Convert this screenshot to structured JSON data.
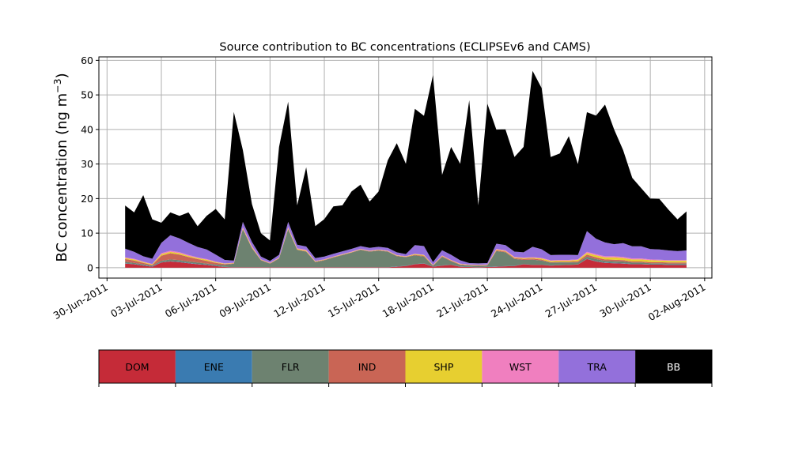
{
  "chart_data": {
    "type": "area",
    "stacked": true,
    "title": "Source contribution to BC concentrations (ECLIPSEv6 and CAMS)",
    "xlabel": "",
    "ylabel": "BC concentration (ng m",
    "ylabel_superscript": "−3",
    "ylabel_close": ")",
    "ylim": [
      -3,
      61
    ],
    "yticks": [
      0,
      10,
      20,
      30,
      40,
      50,
      60
    ],
    "xlim_days_since_30jun2011": [
      -0.45,
      33.4
    ],
    "xticks": [
      {
        "day": 0,
        "label": "30-Jun-2011"
      },
      {
        "day": 3,
        "label": "03-Jul-2011"
      },
      {
        "day": 6,
        "label": "06-Jul-2011"
      },
      {
        "day": 9,
        "label": "09-Jul-2011"
      },
      {
        "day": 12,
        "label": "12-Jul-2011"
      },
      {
        "day": 15,
        "label": "15-Jul-2011"
      },
      {
        "day": 18,
        "label": "18-Jul-2011"
      },
      {
        "day": 21,
        "label": "21-Jul-2011"
      },
      {
        "day": 24,
        "label": "24-Jul-2011"
      },
      {
        "day": 27,
        "label": "27-Jul-2011"
      },
      {
        "day": 30,
        "label": "30-Jul-2011"
      },
      {
        "day": 33,
        "label": "02-Aug-2011"
      }
    ],
    "grid": true,
    "legend": "colorbar-bottom",
    "x": [
      1.0,
      1.5,
      2.0,
      2.5,
      3.0,
      3.5,
      4.0,
      4.5,
      5.0,
      5.5,
      6.0,
      6.5,
      7.0,
      7.5,
      8.0,
      8.5,
      9.0,
      9.5,
      10.0,
      10.5,
      11.0,
      11.5,
      12.0,
      12.5,
      13.0,
      13.5,
      14.0,
      14.5,
      15.0,
      15.5,
      16.0,
      16.5,
      17.0,
      17.5,
      18.0,
      18.5,
      19.0,
      19.5,
      20.0,
      20.5,
      21.0,
      21.5,
      22.0,
      22.5,
      23.0,
      23.5,
      24.0,
      24.5,
      25.0,
      25.5,
      26.0,
      26.5,
      27.0,
      27.5,
      28.0,
      28.5,
      29.0,
      29.5,
      30.0,
      30.5,
      31.0,
      31.5,
      32.0
    ],
    "series": [
      {
        "name": "DOM",
        "color": "#c52b38",
        "values": [
          1.2,
          1.0,
          0.6,
          0.3,
          1.5,
          1.8,
          1.6,
          1.3,
          1.0,
          0.8,
          0.5,
          0.2,
          0.1,
          0.1,
          0.1,
          0.1,
          0.1,
          0.1,
          0.1,
          0.1,
          0.1,
          0.1,
          0.1,
          0.1,
          0.1,
          0.1,
          0.1,
          0.1,
          0.1,
          0.1,
          0.3,
          0.5,
          1.0,
          1.2,
          0.3,
          0.6,
          0.8,
          0.3,
          0.2,
          0.1,
          0.2,
          0.3,
          0.4,
          0.5,
          1.0,
          0.8,
          0.8,
          0.6,
          0.7,
          0.8,
          0.9,
          2.5,
          1.8,
          1.4,
          1.3,
          1.2,
          1.0,
          1.0,
          0.9,
          0.9,
          0.8,
          0.8,
          0.8
        ]
      },
      {
        "name": "ENE",
        "color": "#3a7bb1",
        "values": [
          0.1,
          0.1,
          0.1,
          0.1,
          0.1,
          0.1,
          0.1,
          0.1,
          0.1,
          0.1,
          0.1,
          0.05,
          0.05,
          0.05,
          0.05,
          0.05,
          0.05,
          0.05,
          0.05,
          0.05,
          0.05,
          0.05,
          0.05,
          0.05,
          0.05,
          0.05,
          0.05,
          0.05,
          0.05,
          0.05,
          0.05,
          0.05,
          0.05,
          0.05,
          0.05,
          0.05,
          0.05,
          0.05,
          0.05,
          0.05,
          0.05,
          0.05,
          0.05,
          0.05,
          0.05,
          0.05,
          0.05,
          0.05,
          0.05,
          0.05,
          0.05,
          0.1,
          0.1,
          0.1,
          0.1,
          0.1,
          0.1,
          0.1,
          0.1,
          0.1,
          0.1,
          0.1,
          0.1
        ]
      },
      {
        "name": "FLR",
        "color": "#6d8270",
        "values": [
          0.4,
          0.3,
          0.3,
          0.2,
          0.4,
          0.5,
          0.5,
          0.4,
          0.4,
          0.3,
          0.3,
          0.6,
          1.0,
          11.0,
          5.5,
          2.0,
          1.0,
          2.5,
          11.0,
          5.0,
          4.5,
          1.5,
          2.0,
          2.8,
          3.5,
          4.2,
          5.0,
          4.5,
          4.8,
          4.5,
          3.0,
          2.5,
          2.5,
          2.0,
          0.2,
          2.5,
          1.0,
          0.5,
          0.4,
          0.4,
          0.4,
          4.5,
          4.0,
          2.0,
          1.2,
          1.5,
          1.2,
          0.8,
          0.8,
          0.7,
          0.6,
          0.6,
          0.6,
          0.5,
          0.5,
          0.5,
          0.4,
          0.4,
          0.3,
          0.3,
          0.3,
          0.3,
          0.3
        ]
      },
      {
        "name": "IND",
        "color": "#c96555",
        "values": [
          0.8,
          0.7,
          0.4,
          0.2,
          1.5,
          1.8,
          1.6,
          1.3,
          1.0,
          0.8,
          0.5,
          0.2,
          0.1,
          0.1,
          0.1,
          0.1,
          0.1,
          0.1,
          0.1,
          0.1,
          0.1,
          0.1,
          0.1,
          0.1,
          0.1,
          0.1,
          0.1,
          0.1,
          0.1,
          0.1,
          0.1,
          0.1,
          0.2,
          0.2,
          0.1,
          0.2,
          0.2,
          0.1,
          0.1,
          0.1,
          0.1,
          0.2,
          0.2,
          0.2,
          0.3,
          0.3,
          0.3,
          0.2,
          0.2,
          0.2,
          0.3,
          0.6,
          0.5,
          0.4,
          0.4,
          0.4,
          0.3,
          0.3,
          0.3,
          0.3,
          0.3,
          0.3,
          0.3
        ]
      },
      {
        "name": "SHP",
        "color": "#e7cf30",
        "values": [
          0.3,
          0.3,
          0.2,
          0.2,
          0.4,
          0.4,
          0.4,
          0.3,
          0.3,
          0.3,
          0.2,
          0.1,
          0.1,
          0.2,
          0.2,
          0.1,
          0.1,
          0.1,
          0.2,
          0.2,
          0.2,
          0.1,
          0.1,
          0.1,
          0.1,
          0.1,
          0.1,
          0.1,
          0.1,
          0.1,
          0.1,
          0.1,
          0.2,
          0.2,
          0.1,
          0.1,
          0.1,
          0.1,
          0.1,
          0.1,
          0.1,
          0.2,
          0.2,
          0.2,
          0.2,
          0.2,
          0.3,
          0.3,
          0.3,
          0.3,
          0.4,
          0.5,
          0.6,
          0.6,
          0.7,
          0.6,
          0.6,
          0.6,
          0.6,
          0.5,
          0.5,
          0.5,
          0.5
        ]
      },
      {
        "name": "WST",
        "color": "#f07fbf",
        "values": [
          0.2,
          0.2,
          0.2,
          0.1,
          0.3,
          0.3,
          0.3,
          0.3,
          0.2,
          0.2,
          0.2,
          0.1,
          0.1,
          0.3,
          0.3,
          0.1,
          0.1,
          0.1,
          0.3,
          0.2,
          0.2,
          0.1,
          0.1,
          0.1,
          0.1,
          0.1,
          0.1,
          0.1,
          0.1,
          0.1,
          0.1,
          0.1,
          0.1,
          0.1,
          0.1,
          0.1,
          0.1,
          0.1,
          0.1,
          0.1,
          0.1,
          0.2,
          0.2,
          0.2,
          0.2,
          0.2,
          0.2,
          0.2,
          0.2,
          0.2,
          0.2,
          0.3,
          0.3,
          0.3,
          0.3,
          0.3,
          0.3,
          0.3,
          0.2,
          0.2,
          0.2,
          0.2,
          0.2
        ]
      },
      {
        "name": "TRA",
        "color": "#9370db",
        "values": [
          2.5,
          2.0,
          1.5,
          1.5,
          3.0,
          4.5,
          4.0,
          3.5,
          3.0,
          2.8,
          2.0,
          1.0,
          0.6,
          1.5,
          1.2,
          0.8,
          0.5,
          0.8,
          1.5,
          1.0,
          1.0,
          0.8,
          0.8,
          0.8,
          0.8,
          0.8,
          0.8,
          0.8,
          0.8,
          0.8,
          0.8,
          0.6,
          2.5,
          2.5,
          0.8,
          1.5,
          1.5,
          1.0,
          0.4,
          0.4,
          0.4,
          1.5,
          1.5,
          1.5,
          1.5,
          3.0,
          2.5,
          1.5,
          1.5,
          1.5,
          1.2,
          6.0,
          4.5,
          4.0,
          3.5,
          4.0,
          3.5,
          3.5,
          3.0,
          3.0,
          2.8,
          2.6,
          2.8
        ]
      },
      {
        "name": "BB",
        "color": "#000000",
        "values": [
          12.5,
          11.4,
          17.7,
          11.4,
          5.8,
          6.6,
          6.5,
          8.8,
          6.0,
          9.7,
          13.2,
          11.7,
          43.0,
          20.8,
          11.0,
          6.7,
          5.9,
          31.2,
          34.8,
          11.4,
          22.9,
          9.3,
          10.8,
          13.7,
          13.3,
          16.6,
          17.8,
          13.4,
          16.0,
          25.3,
          31.6,
          26.1,
          39.4,
          37.7,
          54.1,
          21.8,
          31.2,
          27.9,
          47.1,
          16.8,
          46.1,
          33.0,
          33.5,
          27.4,
          30.5,
          50.9,
          46.6,
          28.4,
          29.3,
          34.3,
          26.3,
          34.4,
          35.6,
          39.9,
          33.2,
          26.9,
          19.8,
          16.8,
          14.6,
          14.6,
          11.8,
          9.2,
          11.3
        ]
      }
    ]
  }
}
